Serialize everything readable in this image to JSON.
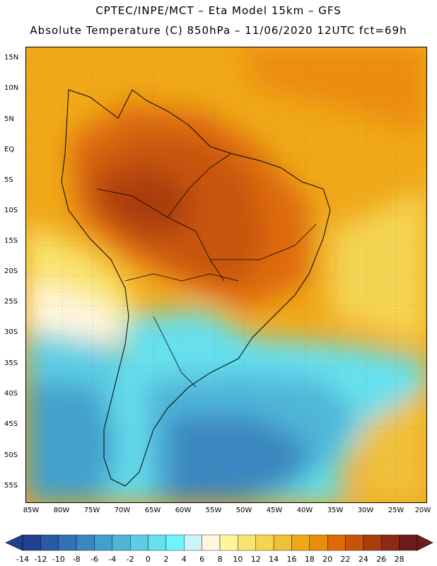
{
  "title": {
    "line1": "CPTEC/INPE/MCT –  Eta Model 15km – GFS",
    "line2": "Absolute Temperature (C) 850hPa – 11/06/2020 12UTC fct=69h"
  },
  "lat_labels": [
    "15N",
    "10N",
    "5N",
    "EQ",
    "5S",
    "10S",
    "15S",
    "20S",
    "25S",
    "30S",
    "35S",
    "40S",
    "45S",
    "50S",
    "55S"
  ],
  "lon_labels": [
    "85W",
    "80W",
    "75W",
    "70W",
    "65W",
    "60W",
    "55W",
    "50W",
    "45W",
    "40W",
    "35W",
    "30W",
    "25W",
    "20W"
  ],
  "colorbar": {
    "labels": [
      "-14",
      "-12",
      "-10",
      "-8",
      "-6",
      "-4",
      "-2",
      "0",
      "2",
      "4",
      "6",
      "8",
      "10",
      "12",
      "14",
      "16",
      "18",
      "20",
      "22",
      "24",
      "26",
      "28"
    ],
    "colors": [
      "#1f3f8f",
      "#2b5aa5",
      "#3372b5",
      "#3a86c0",
      "#43a0cc",
      "#4fb6d8",
      "#5ccde4",
      "#66e0ee",
      "#6ff5fb",
      "#cdf3fb",
      "#fff6dd",
      "#fff59a",
      "#f9e46e",
      "#f5d452",
      "#f0c03a",
      "#f0a818",
      "#ec8c0c",
      "#de6a08",
      "#c85408",
      "#aa3c0a",
      "#8c2a12",
      "#6c1c1c"
    ]
  }
}
